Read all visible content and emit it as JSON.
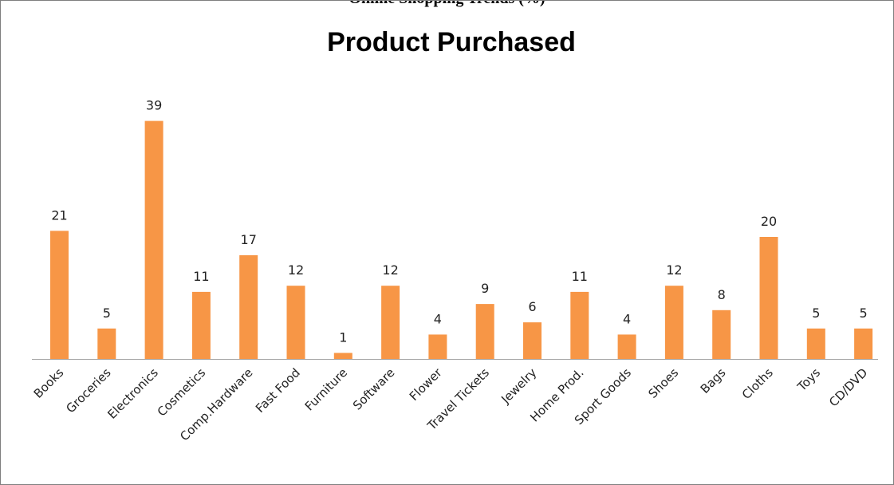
{
  "page_caption": "Online Shopping Trends (%)",
  "chart_data": {
    "type": "bar",
    "title": "Product Purchased",
    "xlabel": "",
    "ylabel": "",
    "ylim": [
      0,
      40
    ],
    "grid": false,
    "legend": "none",
    "bar_color": "#f79646",
    "axis_color": "#a6a6a6",
    "categories": [
      "Books",
      "Groceries",
      "Electronics",
      "Cosmetics",
      "Comp.Hardware",
      "Fast Food",
      "Furniture",
      "Software",
      "Flower",
      "Travel Tickets",
      "Jewelry",
      "Home Prod.",
      "Sport Goods",
      "Shoes",
      "Bags",
      "Cloths",
      "Toys",
      "CD/DVD"
    ],
    "values": [
      21,
      5,
      39,
      11,
      17,
      12,
      1,
      12,
      4,
      9,
      6,
      11,
      4,
      12,
      8,
      20,
      5,
      5
    ]
  }
}
